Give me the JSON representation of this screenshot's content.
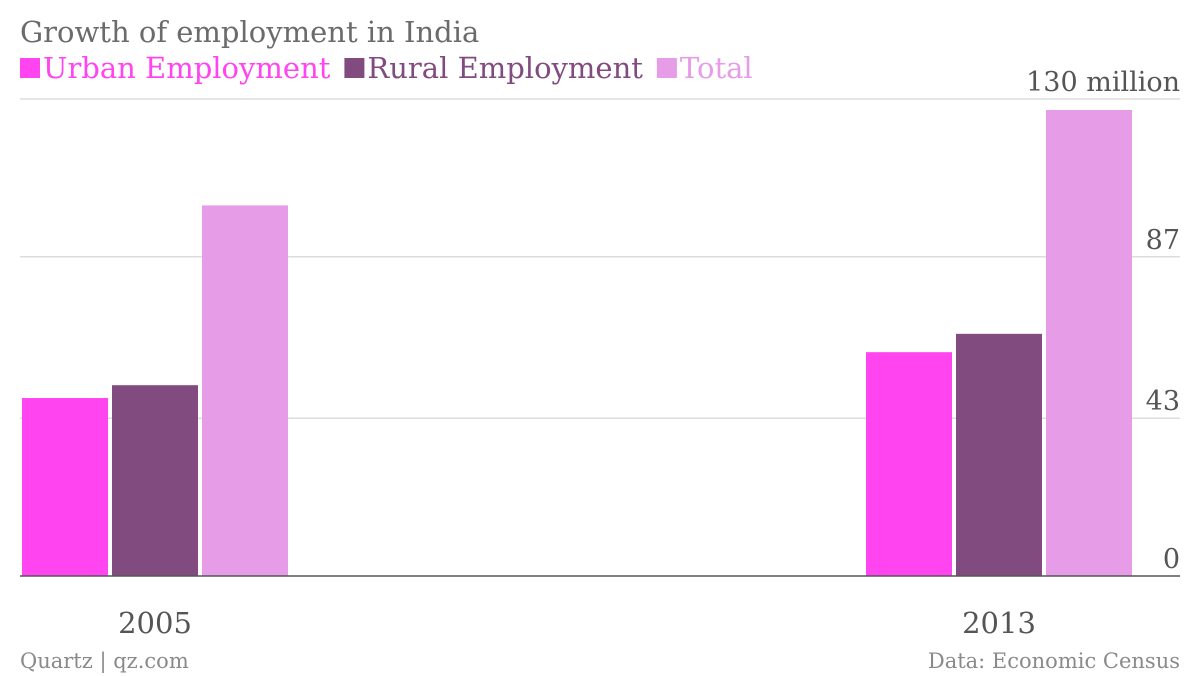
{
  "chart_data": {
    "type": "bar",
    "title": "Growth of employment in India",
    "categories": [
      "2005",
      "2013"
    ],
    "series": [
      {
        "name": "Urban Employment",
        "color": "#ff44f0",
        "values": [
          48.5,
          61
        ]
      },
      {
        "name": "Rural Employment",
        "color": "#814b7f",
        "values": [
          52,
          66
        ]
      },
      {
        "name": "Total",
        "color": "#e69ce6",
        "values": [
          101,
          127
        ]
      }
    ],
    "y_ticks": [
      0,
      43,
      87,
      130
    ],
    "y_tick_labels": [
      "0",
      "43",
      "87",
      "130 million"
    ],
    "ylim": [
      0,
      130
    ],
    "xlabel": "",
    "ylabel": "",
    "grid": true,
    "legend_position": "top-left"
  },
  "footer": {
    "source_left": "Quartz | qz.com",
    "source_right": "Data: Economic Census"
  }
}
